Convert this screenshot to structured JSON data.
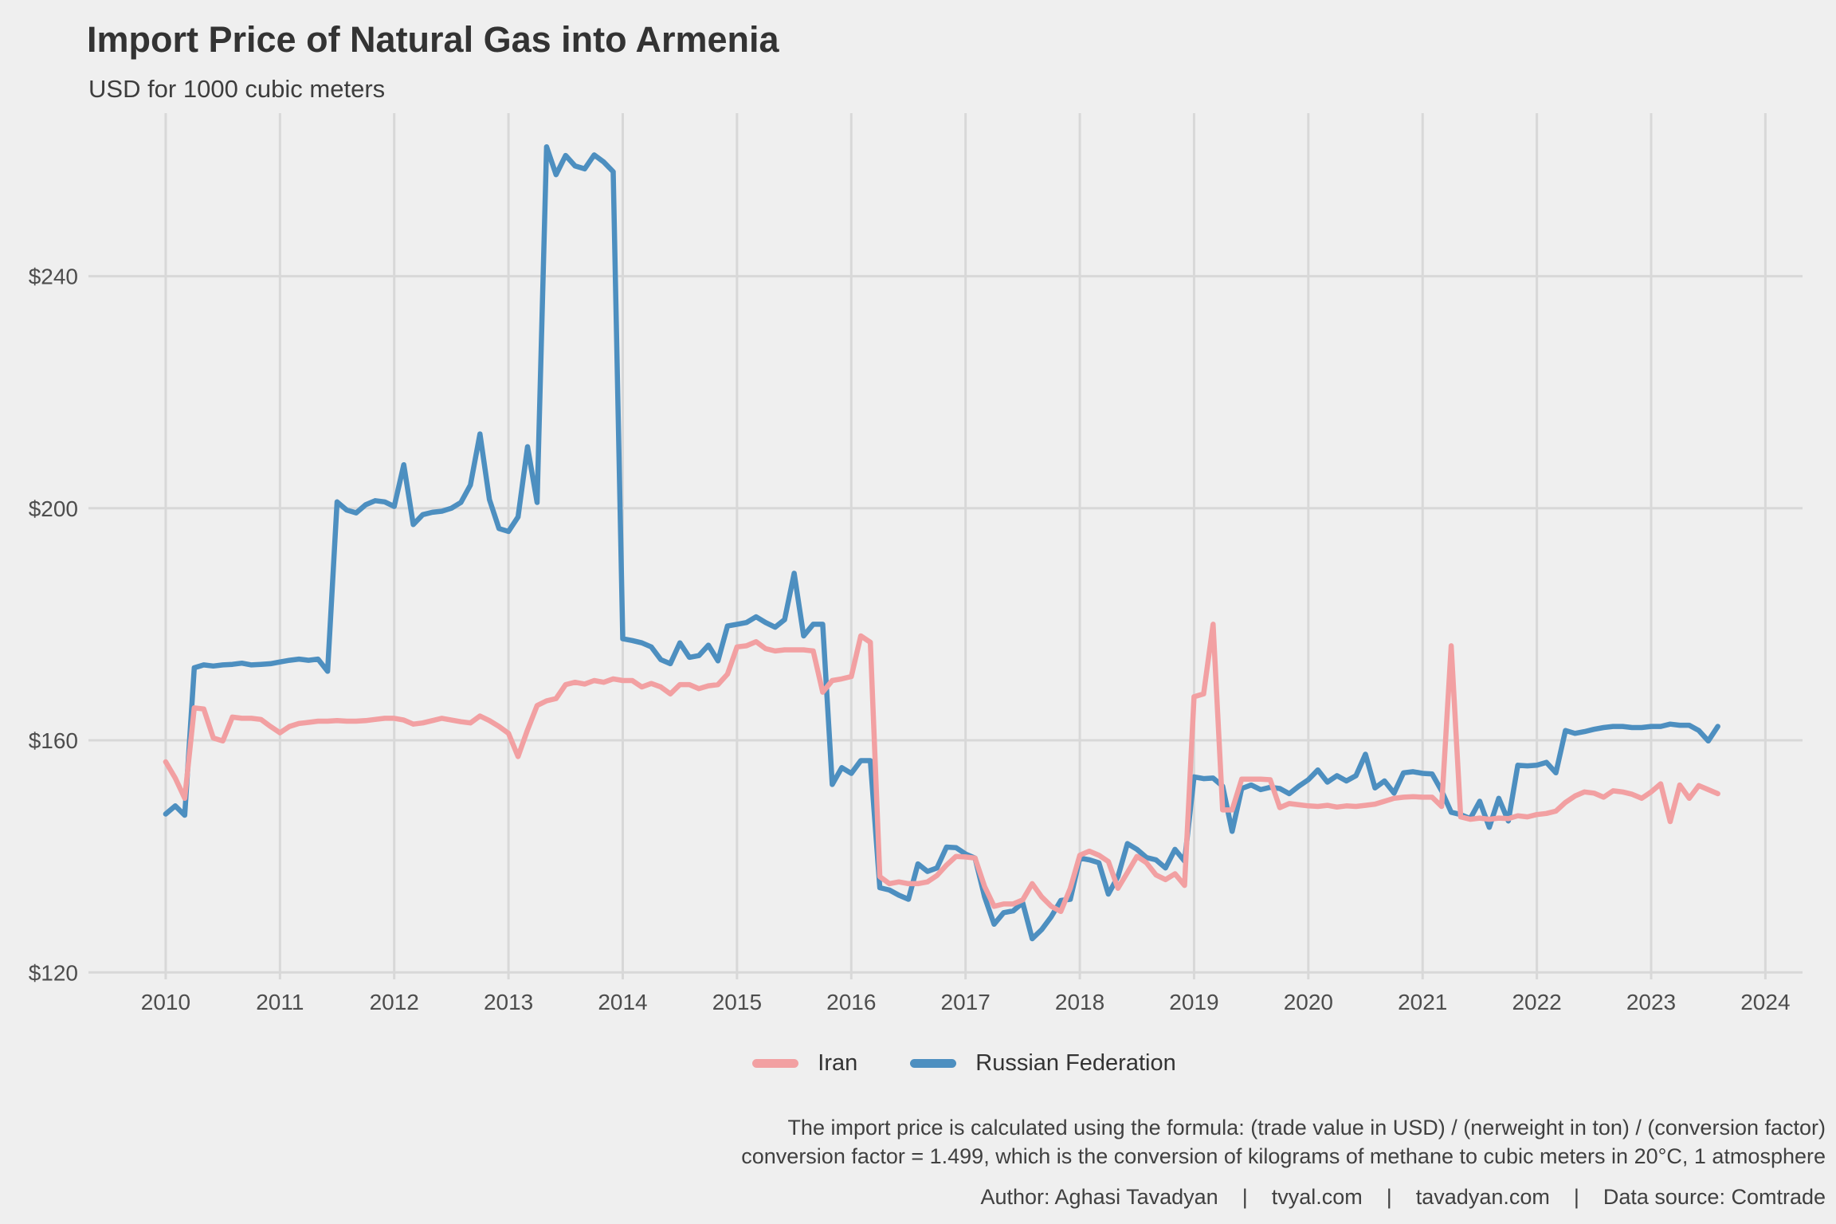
{
  "header": {
    "title": "Import Price of Natural Gas into Armenia",
    "subtitle": "USD for 1000 cubic meters"
  },
  "colors": {
    "background": "#efefef",
    "gridline": "#d8d8d8",
    "axis_text": "#4d4d4d",
    "iran": "#f2a0a2",
    "russia": "#4d8fc0"
  },
  "caption": {
    "line1": "The import price is calculated using the formula: (trade value in USD) / (nerweight in ton) / (conversion factor)",
    "line2": "conversion factor = 1.499, which is the conversion of kilograms of methane to cubic meters in 20°C, 1 atmosphere"
  },
  "credits": {
    "author": "Author: Aghasi Tavadyan",
    "site1": "tvyal.com",
    "site2": "tavadyan.com",
    "source": "Data source: Comtrade",
    "separator": "|"
  },
  "chart_data": {
    "type": "line",
    "title": "Import Price of Natural Gas into Armenia",
    "subtitle": "USD for 1000 cubic meters",
    "xlabel": "",
    "ylabel": "USD for 1000 cubic meters",
    "x_unit": "monthly",
    "x_start": 2010.0,
    "xlim": [
      2009.324,
      2024.325
    ],
    "ylim": [
      118.8,
      268.1
    ],
    "grid": true,
    "legend_position": "bottom",
    "y_ticks": [
      {
        "label": "$120",
        "value": 120
      },
      {
        "label": "$160",
        "value": 160
      },
      {
        "label": "$200",
        "value": 200
      },
      {
        "label": "$240",
        "value": 240
      }
    ],
    "x_ticks": [
      {
        "label": "2010",
        "value": 2010
      },
      {
        "label": "2011",
        "value": 2011
      },
      {
        "label": "2012",
        "value": 2012
      },
      {
        "label": "2013",
        "value": 2013
      },
      {
        "label": "2014",
        "value": 2014
      },
      {
        "label": "2015",
        "value": 2015
      },
      {
        "label": "2016",
        "value": 2016
      },
      {
        "label": "2017",
        "value": 2017
      },
      {
        "label": "2018",
        "value": 2018
      },
      {
        "label": "2019",
        "value": 2019
      },
      {
        "label": "2020",
        "value": 2020
      },
      {
        "label": "2021",
        "value": 2021
      },
      {
        "label": "2022",
        "value": 2022
      },
      {
        "label": "2023",
        "value": 2023
      },
      {
        "label": "2024",
        "value": 2024
      }
    ],
    "series": [
      {
        "name": "Russian Federation",
        "color": "#4d8fc0",
        "values": [
          147.3,
          148.7,
          147.1,
          172.5,
          173.0,
          172.8,
          173.0,
          173.1,
          173.3,
          173.0,
          173.1,
          173.2,
          173.5,
          173.8,
          174.0,
          173.8,
          174.0,
          171.9,
          201.1,
          199.7,
          199.2,
          200.6,
          201.3,
          201.1,
          200.3,
          207.5,
          197.2,
          198.9,
          199.3,
          199.5,
          200.0,
          201.0,
          204.0,
          212.8,
          201.5,
          196.5,
          196.0,
          198.5,
          210.6,
          201.0,
          262.3,
          257.5,
          260.8,
          259.0,
          258.5,
          260.9,
          259.7,
          258.0,
          177.5,
          177.2,
          176.8,
          176.1,
          173.9,
          173.2,
          176.8,
          174.3,
          174.6,
          176.4,
          173.7,
          179.7,
          180.0,
          180.3,
          181.3,
          180.3,
          179.5,
          180.8,
          188.8,
          178.0,
          180.0,
          180.0,
          152.4,
          155.3,
          154.3,
          156.5,
          156.5,
          134.6,
          134.2,
          133.3,
          132.6,
          138.7,
          137.4,
          138.0,
          141.6,
          141.5,
          140.4,
          139.7,
          133.0,
          128.3,
          130.3,
          130.6,
          132.0,
          125.8,
          127.4,
          129.6,
          132.4,
          132.6,
          139.7,
          139.4,
          138.9,
          133.5,
          136.5,
          142.2,
          141.2,
          139.8,
          139.4,
          138.0,
          141.2,
          139.2,
          153.7,
          153.4,
          153.5,
          152.1,
          144.3,
          151.7,
          152.3,
          151.5,
          151.9,
          151.7,
          150.8,
          152.1,
          153.2,
          154.9,
          152.8,
          153.9,
          153.0,
          153.9,
          157.6,
          151.8,
          153.0,
          150.9,
          154.4,
          154.6,
          154.3,
          154.2,
          151.3,
          147.6,
          147.2,
          146.5,
          149.5,
          145.0,
          150.0,
          146.1,
          155.7,
          155.6,
          155.7,
          156.2,
          154.4,
          161.7,
          161.2,
          161.5,
          161.9,
          162.2,
          162.4,
          162.4,
          162.2,
          162.2,
          162.4,
          162.4,
          162.8,
          162.6,
          162.6,
          161.7,
          159.9,
          162.4
        ]
      },
      {
        "name": "Iran",
        "color": "#f2a0a2",
        "values": [
          156.3,
          153.5,
          150.0,
          165.6,
          165.4,
          160.4,
          159.9,
          164.0,
          163.8,
          163.8,
          163.6,
          162.4,
          161.3,
          162.4,
          162.9,
          163.1,
          163.3,
          163.3,
          163.4,
          163.3,
          163.3,
          163.4,
          163.6,
          163.8,
          163.8,
          163.5,
          162.8,
          163.0,
          163.4,
          163.8,
          163.5,
          163.2,
          163.0,
          164.2,
          163.4,
          162.4,
          161.2,
          157.2,
          161.8,
          166.0,
          166.8,
          167.2,
          169.6,
          170.0,
          169.7,
          170.3,
          170.0,
          170.6,
          170.3,
          170.3,
          169.2,
          169.8,
          169.2,
          168.0,
          169.6,
          169.6,
          168.9,
          169.4,
          169.6,
          171.4,
          176.1,
          176.3,
          177.0,
          175.8,
          175.4,
          175.6,
          175.6,
          175.6,
          175.4,
          168.3,
          170.3,
          170.6,
          171.0,
          178.0,
          176.9,
          136.5,
          135.3,
          135.6,
          135.3,
          135.3,
          135.6,
          136.7,
          138.5,
          140.0,
          139.9,
          139.7,
          134.8,
          131.4,
          131.8,
          131.8,
          132.5,
          135.3,
          133.0,
          131.4,
          130.5,
          134.5,
          140.2,
          140.9,
          140.2,
          139.1,
          134.5,
          137.2,
          140.0,
          138.9,
          136.8,
          136.0,
          137.0,
          135.0,
          167.5,
          168.0,
          180.0,
          148.0,
          148.0,
          153.3,
          153.3,
          153.3,
          153.2,
          148.4,
          149.1,
          148.9,
          148.7,
          148.6,
          148.8,
          148.5,
          148.7,
          148.6,
          148.8,
          149.0,
          149.5,
          150.0,
          150.2,
          150.3,
          150.2,
          150.2,
          148.6,
          176.3,
          146.8,
          146.4,
          146.6,
          146.4,
          146.6,
          146.5,
          147.0,
          146.8,
          147.2,
          147.4,
          147.8,
          149.3,
          150.4,
          151.1,
          150.9,
          150.2,
          151.3,
          151.1,
          150.7,
          150.0,
          151.1,
          152.5,
          146.0,
          152.3,
          150.0,
          152.2,
          151.5,
          150.8
        ]
      }
    ]
  },
  "legend": {
    "items": [
      {
        "label": "Iran",
        "color": "#f2a0a2"
      },
      {
        "label": "Russian Federation",
        "color": "#4d8fc0"
      }
    ]
  }
}
